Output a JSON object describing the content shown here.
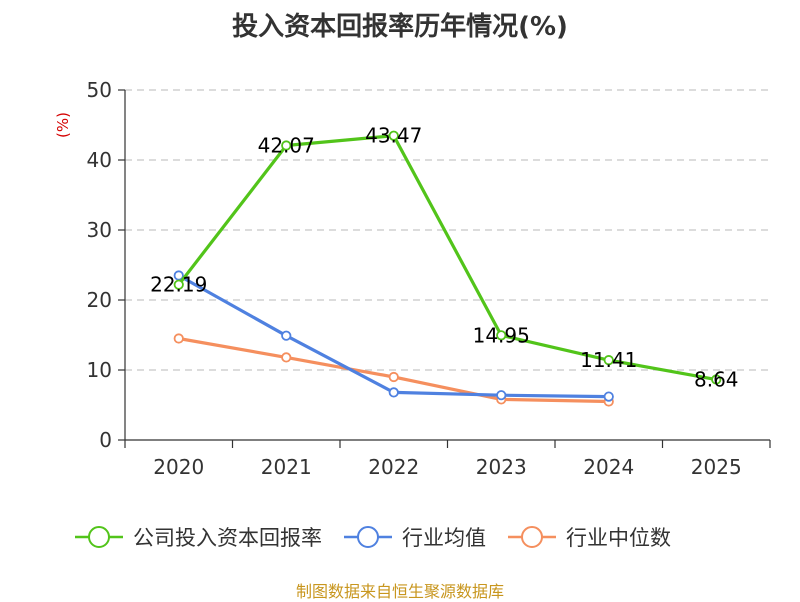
{
  "chart_data": {
    "type": "line",
    "title": "投入资本回报率历年情况(%)",
    "ylabel": "(%)",
    "xlabel": "",
    "categories": [
      "2020",
      "2021",
      "2022",
      "2023",
      "2024",
      "2025"
    ],
    "ylim": [
      0,
      50
    ],
    "yticks": [
      0,
      10,
      20,
      30,
      40,
      50
    ],
    "grid": true,
    "legend_position": "bottom",
    "series": [
      {
        "name": "公司投入资本回报率",
        "color": "#52c41a",
        "values": [
          22.19,
          42.07,
          43.47,
          14.95,
          11.41,
          8.64
        ],
        "labels": [
          "22.19",
          "42.07",
          "43.47",
          "14.95",
          "11.41",
          "8.64"
        ]
      },
      {
        "name": "行业均值",
        "color": "#4f81e0",
        "values": [
          23.5,
          14.9,
          6.8,
          6.4,
          6.2,
          null
        ]
      },
      {
        "name": "行业中位数",
        "color": "#f58f5e",
        "values": [
          14.5,
          11.8,
          9.0,
          5.8,
          5.5,
          null
        ]
      }
    ]
  },
  "source": "制图数据来自恒生聚源数据库"
}
